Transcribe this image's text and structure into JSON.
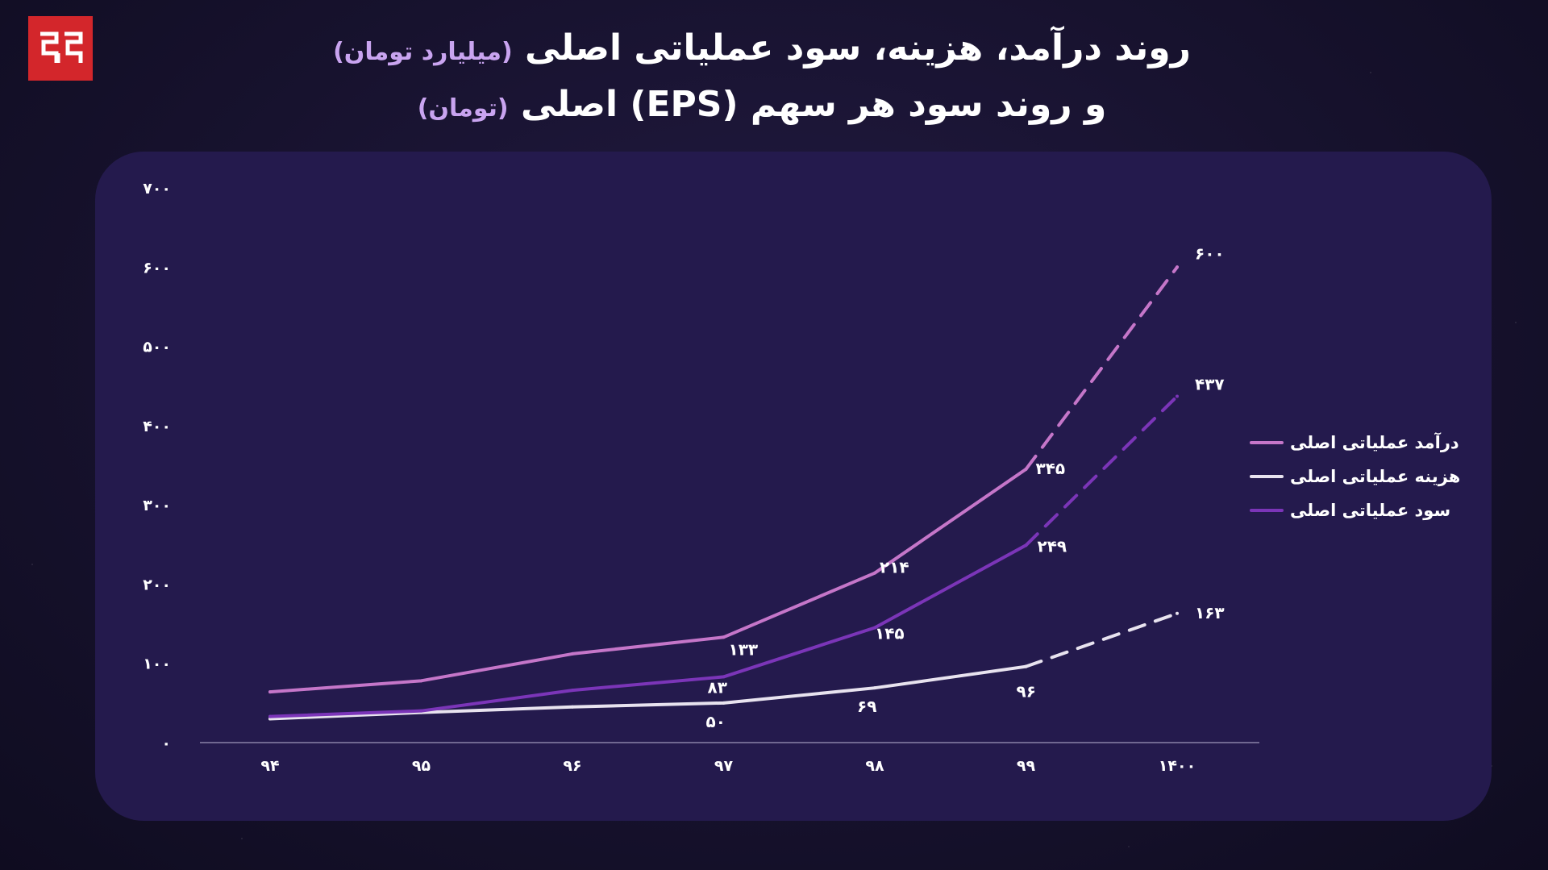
{
  "title": {
    "line1_main": "روند درآمد، هزینه، سود عملیاتی اصلی",
    "line1_unit": "(میلیارد تومان)",
    "line2_main": "و روند سود هر سهم (EPS) اصلی",
    "line2_unit": "(تومان)"
  },
  "legend": [
    {
      "label": "درآمد عملیاتی اصلی"
    },
    {
      "label": "هزینه عملیاتی اصلی"
    },
    {
      "label": "سود عملیاتی اصلی"
    }
  ],
  "chart_data": {
    "type": "line",
    "categories": [
      "۹۴",
      "۹۵",
      "۹۶",
      "۹۷",
      "۹۸",
      "۹۹",
      "۱۴۰۰"
    ],
    "yticks": [
      0,
      100,
      200,
      300,
      400,
      500,
      600,
      700
    ],
    "ytick_labels": [
      "۰",
      "۱۰۰",
      "۲۰۰",
      "۳۰۰",
      "۴۰۰",
      "۵۰۰",
      "۶۰۰",
      "۷۰۰"
    ],
    "ylim": [
      0,
      700
    ],
    "legend_position": "right",
    "grid": false,
    "forecast_from_index": 5,
    "series": [
      {
        "name": "درآمد عملیاتی اصلی",
        "color": "#c576c9",
        "values": [
          64,
          78,
          112,
          133,
          214,
          345,
          600
        ],
        "labels": [
          "",
          "",
          "",
          "۱۳۳",
          "۲۱۴",
          "۳۴۵",
          "۶۰۰"
        ]
      },
      {
        "name": "هزینه عملیاتی اصلی",
        "color": "#e8e3ef",
        "values": [
          30,
          38,
          45,
          50,
          69,
          96,
          163
        ],
        "labels": [
          "",
          "",
          "",
          "۵۰",
          "۶۹",
          "۹۶",
          "۱۶۳"
        ]
      },
      {
        "name": "سود عملیاتی اصلی",
        "color": "#7b35b8",
        "values": [
          33,
          40,
          66,
          83,
          145,
          249,
          437
        ],
        "labels": [
          "",
          "",
          "",
          "۸۳",
          "۱۴۵",
          "۲۴۹",
          "۴۳۷"
        ]
      }
    ]
  }
}
